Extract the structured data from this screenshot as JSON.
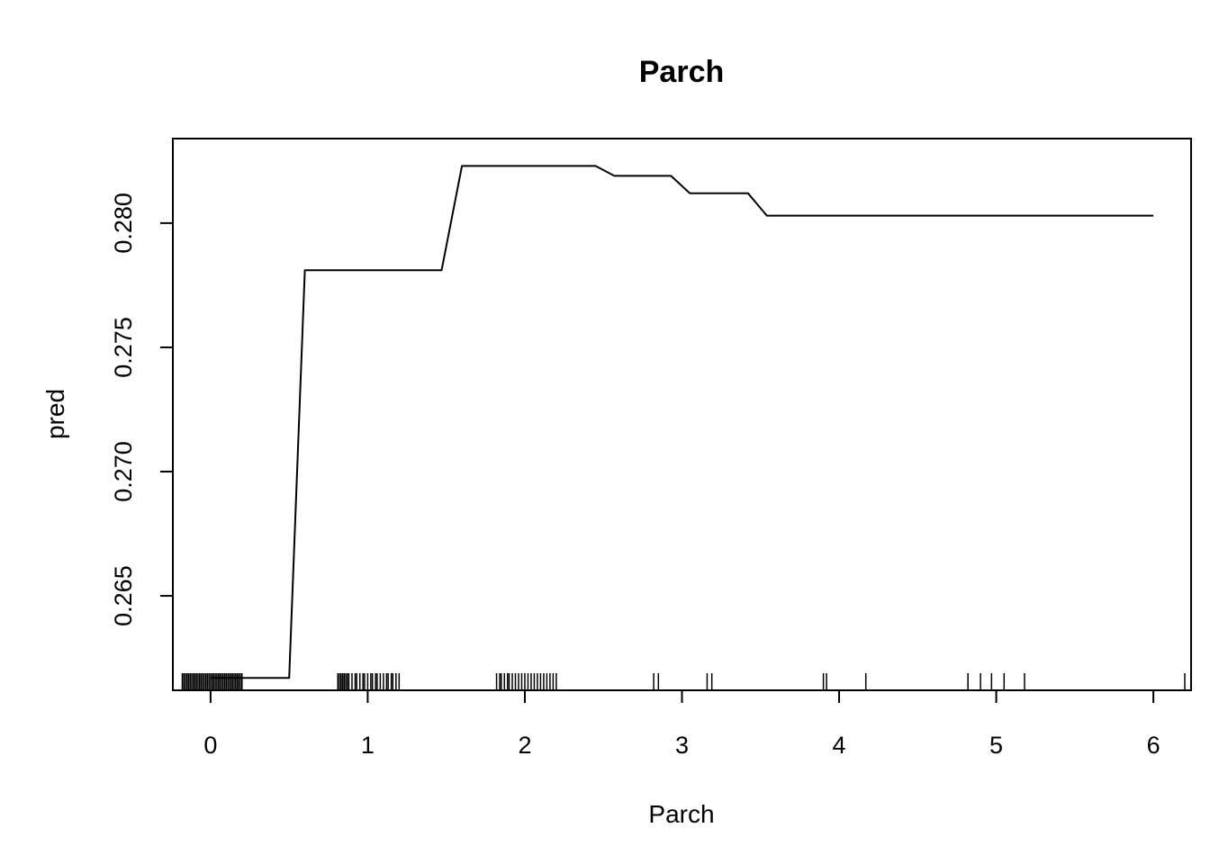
{
  "chart_data": {
    "type": "line",
    "title": "Parch",
    "xlabel": "Parch",
    "ylabel": "pred",
    "xlim": [
      -0.24,
      6.24
    ],
    "ylim": [
      0.2612,
      0.2834
    ],
    "xticks": [
      0,
      1,
      2,
      3,
      4,
      5,
      6
    ],
    "xtick_labels": [
      "0",
      "1",
      "2",
      "3",
      "4",
      "5",
      "6"
    ],
    "yticks": [
      0.265,
      0.27,
      0.275,
      0.28
    ],
    "ytick_labels": [
      "0.265",
      "0.270",
      "0.275",
      "0.280"
    ],
    "grid": false,
    "series": [
      {
        "x": [
          0.0,
          0.5,
          0.6,
          1.47,
          1.6,
          2.45,
          2.57,
          2.93,
          3.05,
          3.42,
          3.54,
          6.0
        ],
        "y": [
          0.2617,
          0.2617,
          0.2781,
          0.2781,
          0.2823,
          0.2823,
          0.2819,
          0.2819,
          0.2812,
          0.2812,
          0.2803,
          0.2803
        ],
        "color": "#000000"
      }
    ],
    "rug": [
      -0.18,
      -0.17,
      -0.16,
      -0.15,
      -0.14,
      -0.13,
      -0.12,
      -0.11,
      -0.1,
      -0.09,
      -0.08,
      -0.07,
      -0.06,
      -0.05,
      -0.04,
      -0.03,
      -0.02,
      -0.01,
      0.0,
      0.01,
      0.02,
      0.03,
      0.04,
      0.05,
      0.06,
      0.07,
      0.08,
      0.09,
      0.1,
      0.11,
      0.12,
      0.13,
      0.14,
      0.15,
      0.16,
      0.17,
      0.18,
      0.19,
      0.2,
      0.81,
      0.82,
      0.83,
      0.84,
      0.85,
      0.86,
      0.87,
      0.88,
      0.9,
      0.92,
      0.93,
      0.95,
      0.97,
      0.98,
      1.0,
      1.02,
      1.03,
      1.05,
      1.06,
      1.08,
      1.1,
      1.12,
      1.13,
      1.15,
      1.16,
      1.18,
      1.2,
      1.82,
      1.84,
      1.85,
      1.87,
      1.89,
      1.9,
      1.92,
      1.94,
      1.96,
      1.98,
      2.0,
      2.02,
      2.04,
      2.06,
      2.08,
      2.1,
      2.12,
      2.14,
      2.16,
      2.18,
      2.2,
      2.82,
      2.85,
      3.16,
      3.19,
      3.9,
      3.92,
      4.17,
      4.82,
      4.9,
      4.97,
      5.05,
      5.18,
      6.2
    ]
  }
}
